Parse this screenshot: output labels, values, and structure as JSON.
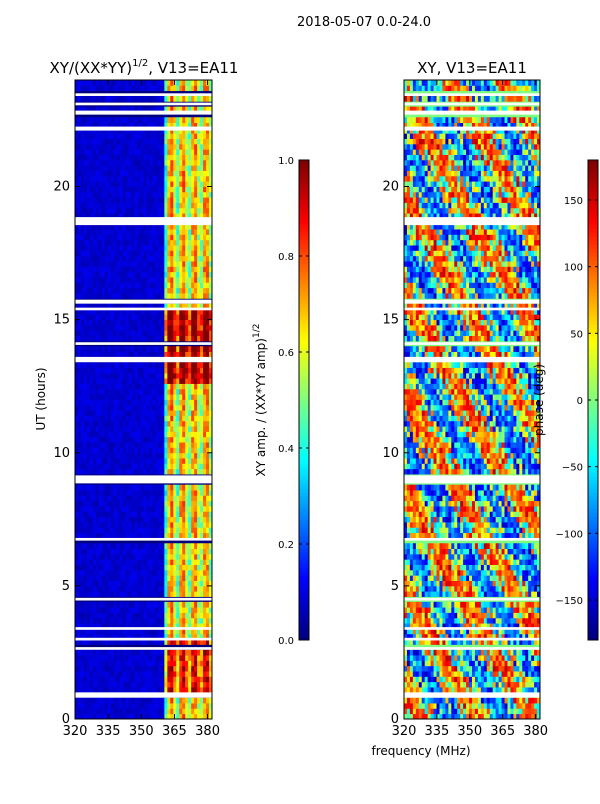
{
  "suptitle": "2018-05-07 0.0-24.0",
  "colors": {
    "jet": [
      "#00007f",
      "#0000ff",
      "#007fff",
      "#00ffff",
      "#7fff7f",
      "#ffff00",
      "#ff7f00",
      "#ff0000",
      "#7f0000"
    ],
    "gap": "#ffffff",
    "frame": "#000000"
  },
  "chart_data": [
    {
      "type": "heatmap",
      "title_main": "XY/(XX*YY)",
      "title_exp": "1/2",
      "title_tail": ", V13=EA11",
      "xlabel": "",
      "ylabel": "UT (hours)",
      "xlim": [
        320,
        382
      ],
      "ylim": [
        0,
        24
      ],
      "xticks": [
        320,
        335,
        350,
        365,
        380
      ],
      "yticks": [
        0,
        5,
        10,
        15,
        20
      ],
      "colorbar": {
        "label_main": "XY amp. / (XX*YY amp)",
        "label_exp": "1/2",
        "range": [
          0.0,
          1.0
        ],
        "ticks": [
          "0.0",
          "0.2",
          "0.4",
          "0.6",
          "0.8",
          "1.0"
        ],
        "tick_values": [
          0.0,
          0.2,
          0.4,
          0.6,
          0.8,
          1.0
        ]
      },
      "signal_band_mhz": [
        361,
        382
      ],
      "baseline_value": 0.05
    },
    {
      "type": "heatmap",
      "title_main": "XY, V13=EA11",
      "title_exp": "",
      "title_tail": "",
      "xlabel": "frequency (MHz)",
      "ylabel": "",
      "xlim": [
        320,
        382
      ],
      "ylim": [
        0,
        24
      ],
      "xticks": [
        320,
        335,
        350,
        365,
        380
      ],
      "yticks": [
        0,
        5,
        10,
        15,
        20
      ],
      "colorbar": {
        "label_main": "phase (deg)",
        "label_exp": "",
        "range": [
          -180,
          180
        ],
        "ticks": [
          "−150",
          "−100",
          "−50",
          "0",
          "50",
          "100",
          "150"
        ],
        "tick_values": [
          -150,
          -100,
          -50,
          0,
          50,
          100,
          150
        ]
      }
    }
  ],
  "data_gaps_ut_hours": [
    [
      0.8,
      1.0
    ],
    [
      2.6,
      2.7
    ],
    [
      2.95,
      3.05
    ],
    [
      3.35,
      3.45
    ],
    [
      4.45,
      4.55
    ],
    [
      6.7,
      6.8
    ],
    [
      8.85,
      9.15
    ],
    [
      13.4,
      13.6
    ],
    [
      14.05,
      14.15
    ],
    [
      15.35,
      15.45
    ],
    [
      15.6,
      15.75
    ],
    [
      18.55,
      18.85
    ],
    [
      22.1,
      22.25
    ],
    [
      22.7,
      22.85
    ],
    [
      23.05,
      23.15
    ],
    [
      23.4,
      23.5
    ]
  ]
}
